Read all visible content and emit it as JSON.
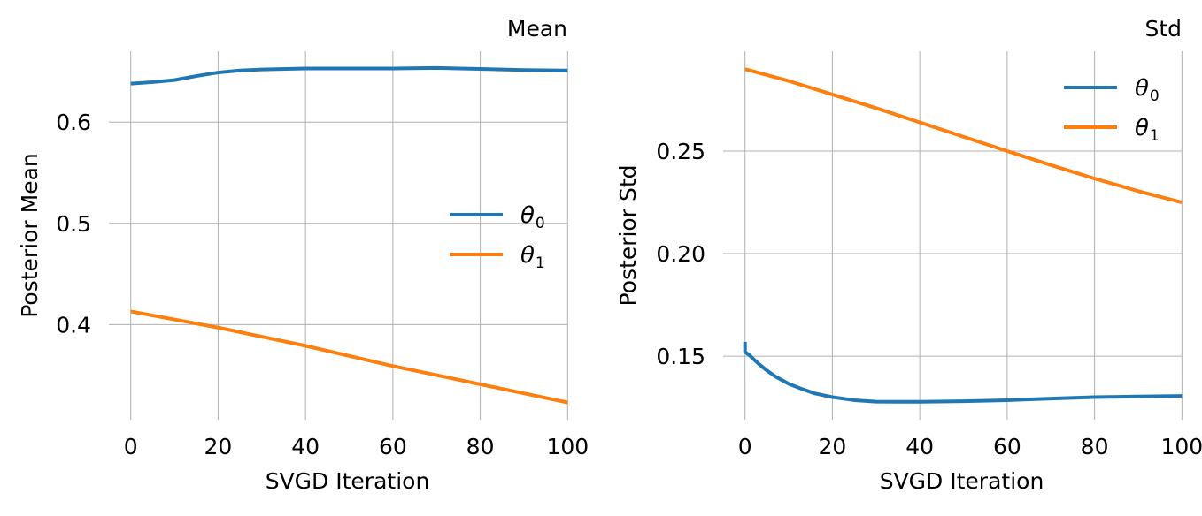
{
  "chart_data": [
    {
      "type": "line",
      "title": "Mean",
      "xlabel": "SVGD Iteration",
      "ylabel": "Posterior Mean",
      "xlim": [
        -5,
        105
      ],
      "ylim": [
        0.306,
        0.67
      ],
      "xticks": [
        0,
        20,
        40,
        60,
        80,
        100
      ],
      "xtick_labels": [
        "0",
        "20",
        "40",
        "60",
        "80",
        "100"
      ],
      "yticks": [
        0.4,
        0.5,
        0.6
      ],
      "ytick_labels": [
        "0.4",
        "0.5",
        "0.6"
      ],
      "grid": true,
      "legend_position": "center-right",
      "series": [
        {
          "name": "θ0",
          "symbol": "θ",
          "subscript": "0",
          "color": "#1f77b4",
          "x": [
            0,
            5,
            10,
            15,
            20,
            25,
            30,
            40,
            50,
            60,
            70,
            80,
            90,
            100
          ],
          "y": [
            0.638,
            0.6395,
            0.6415,
            0.6455,
            0.649,
            0.651,
            0.652,
            0.653,
            0.653,
            0.653,
            0.6535,
            0.6525,
            0.6515,
            0.651
          ]
        },
        {
          "name": "θ1",
          "symbol": "θ",
          "subscript": "1",
          "color": "#ff7f0e",
          "x": [
            0,
            10,
            20,
            30,
            40,
            50,
            60,
            70,
            80,
            90,
            100
          ],
          "y": [
            0.413,
            0.405,
            0.397,
            0.388,
            0.379,
            0.369,
            0.359,
            0.35,
            0.341,
            0.332,
            0.323
          ]
        }
      ]
    },
    {
      "type": "line",
      "title": "Std",
      "xlabel": "SVGD Iteration",
      "ylabel": "Posterior Std",
      "xlim": [
        -5,
        105
      ],
      "ylim": [
        0.119,
        0.2987
      ],
      "xticks": [
        0,
        20,
        40,
        60,
        80,
        100
      ],
      "xtick_labels": [
        "0",
        "20",
        "40",
        "60",
        "80",
        "100"
      ],
      "yticks": [
        0.15,
        0.2,
        0.25
      ],
      "ytick_labels": [
        "0.15",
        "0.20",
        "0.25"
      ],
      "grid": true,
      "legend_position": "upper-right",
      "series": [
        {
          "name": "θ0",
          "symbol": "θ",
          "subscript": "0",
          "color": "#1f77b4",
          "x": [
            0,
            0,
            1,
            2,
            3,
            5,
            7,
            10,
            13,
            16,
            20,
            25,
            30,
            40,
            50,
            60,
            70,
            80,
            90,
            100
          ],
          "y": [
            0.157,
            0.152,
            0.1505,
            0.1485,
            0.1465,
            0.143,
            0.14,
            0.1365,
            0.134,
            0.1318,
            0.13,
            0.1285,
            0.1278,
            0.1277,
            0.128,
            0.1285,
            0.1293,
            0.13,
            0.1303,
            0.1306
          ]
        },
        {
          "name": "θ1",
          "symbol": "θ",
          "subscript": "1",
          "color": "#ff7f0e",
          "x": [
            0,
            10,
            20,
            30,
            40,
            50,
            60,
            70,
            80,
            90,
            100
          ],
          "y": [
            0.29,
            0.2842,
            0.2776,
            0.271,
            0.264,
            0.257,
            0.25,
            0.2432,
            0.2366,
            0.2305,
            0.225
          ]
        }
      ]
    }
  ]
}
